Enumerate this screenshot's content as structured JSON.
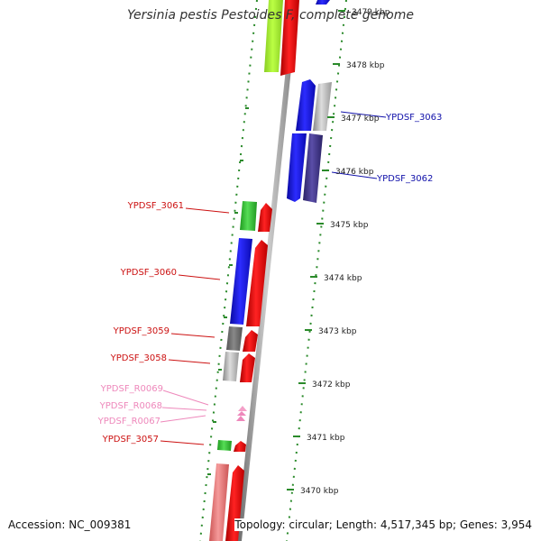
{
  "title": "Yersinia pestis Pestoides F, complete genome",
  "accession": "Accession: NC_009381",
  "summary": "Topology: circular; Length: 4,517,345 bp; Genes: 3,954",
  "colors": {
    "backbone": "#8c8c8c",
    "tick": "#2a8a2a",
    "label_red": "#cc1111",
    "label_blue": "#1111aa",
    "label_pink": "#ee88bb"
  },
  "ticks": [
    {
      "label": "3479 kbp"
    },
    {
      "label": "3478 kbp"
    },
    {
      "label": "3477 kbp"
    },
    {
      "label": "3476 kbp"
    },
    {
      "label": "3475 kbp"
    },
    {
      "label": "3474 kbp"
    },
    {
      "label": "3473 kbp"
    },
    {
      "label": "3472 kbp"
    },
    {
      "label": "3471 kbp"
    },
    {
      "label": "3470 kbp"
    }
  ],
  "gene_labels": [
    {
      "text": "YPDSF_3063",
      "color": "blue"
    },
    {
      "text": "YPDSF_3062",
      "color": "blue"
    },
    {
      "text": "YPDSF_3061",
      "color": "red"
    },
    {
      "text": "YPDSF_3060",
      "color": "red"
    },
    {
      "text": "YPDSF_3059",
      "color": "red"
    },
    {
      "text": "YPDSF_3058",
      "color": "red"
    },
    {
      "text": "YPDSF_R0069",
      "color": "pink"
    },
    {
      "text": "YPDSF_R0068",
      "color": "pink"
    },
    {
      "text": "YPDSF_R0067",
      "color": "pink"
    },
    {
      "text": "YPDSF_3057",
      "color": "red"
    }
  ]
}
